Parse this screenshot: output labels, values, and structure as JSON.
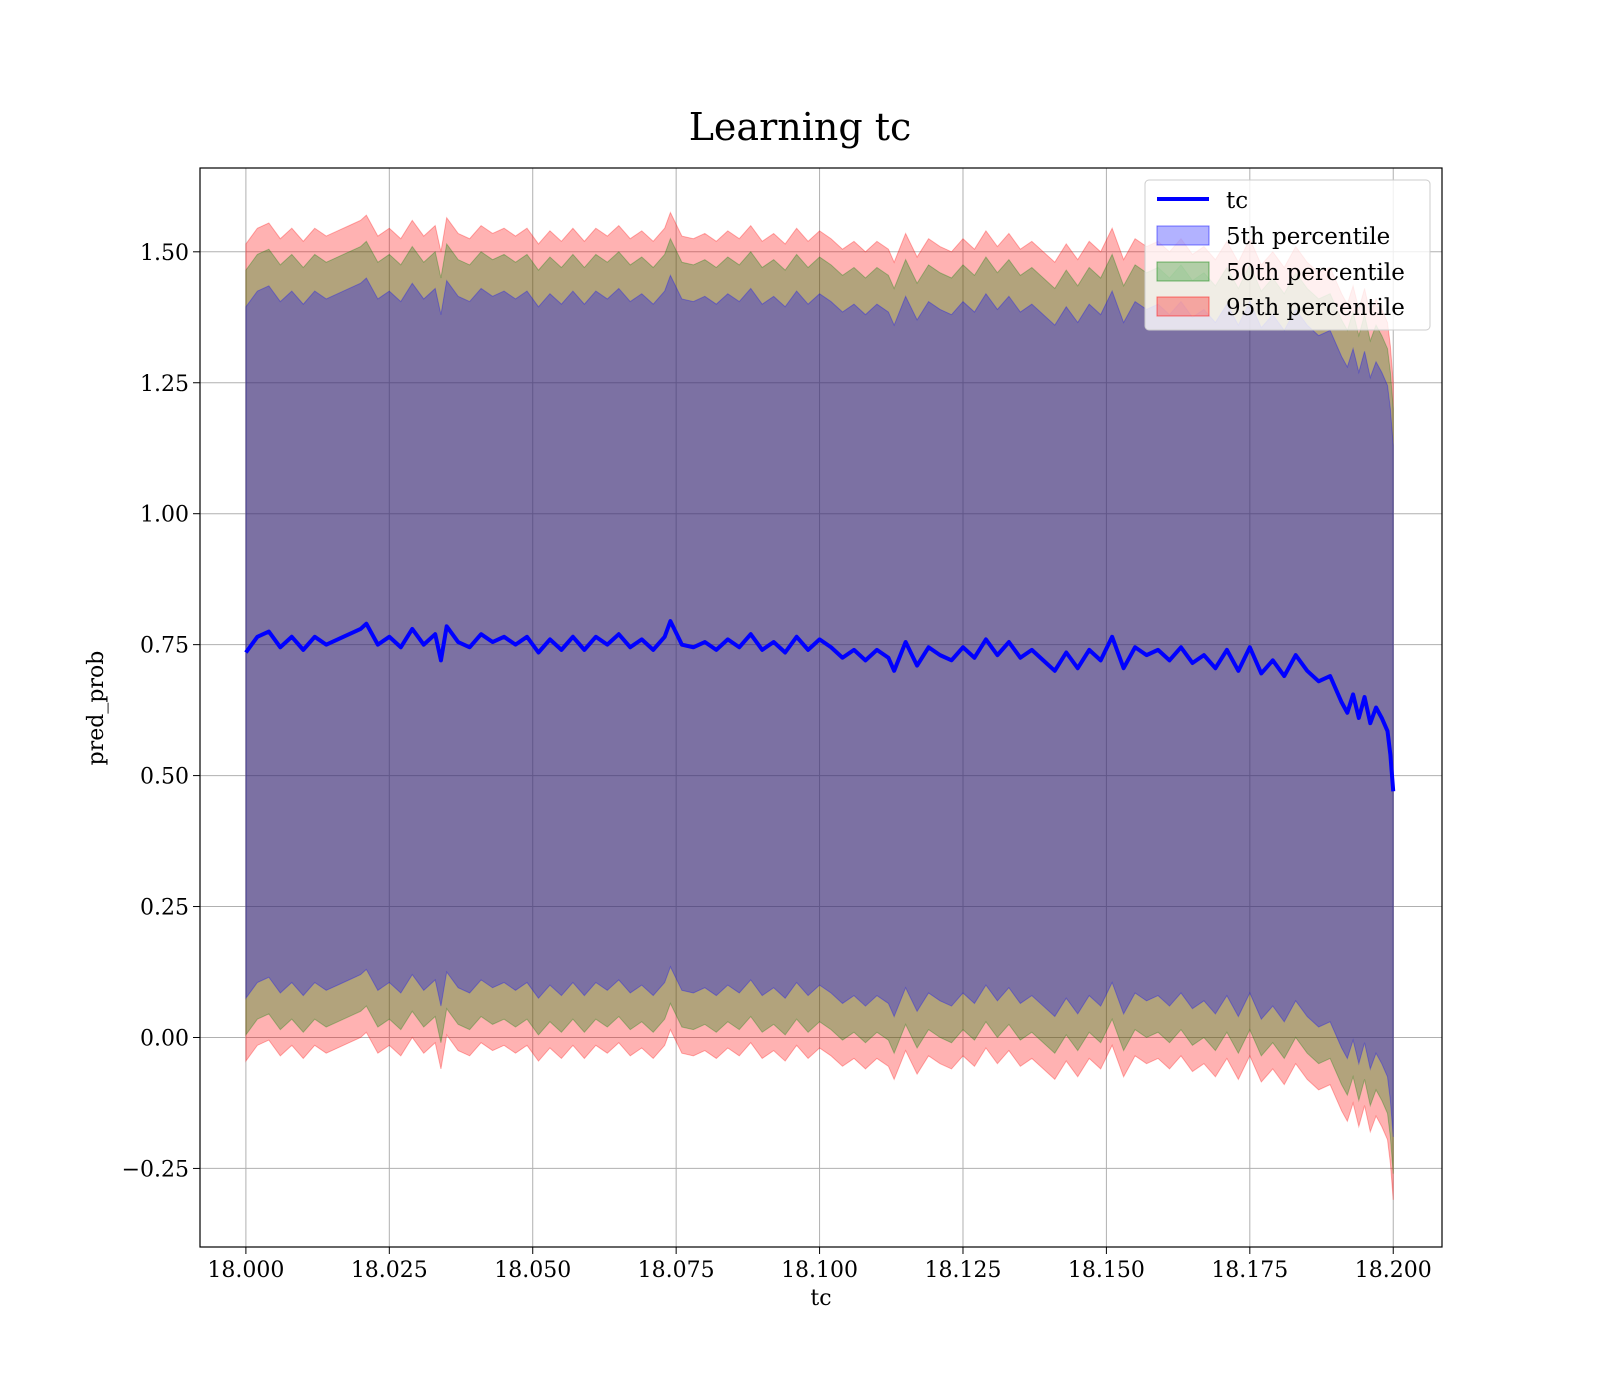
{
  "chart_data": {
    "type": "area",
    "title": "Learning tc",
    "xlabel": "tc",
    "ylabel": "pred_prob",
    "xlim": [
      17.992,
      18.2085
    ],
    "ylim": [
      -0.4,
      1.66
    ],
    "xticks": [
      18.0,
      18.025,
      18.05,
      18.075,
      18.1,
      18.125,
      18.15,
      18.175,
      18.2
    ],
    "xtick_labels": [
      "18.000",
      "18.025",
      "18.050",
      "18.075",
      "18.100",
      "18.125",
      "18.150",
      "18.175",
      "18.200"
    ],
    "yticks": [
      -0.25,
      0.0,
      0.25,
      0.5,
      0.75,
      1.0,
      1.25,
      1.5
    ],
    "ytick_labels": [
      "−0.25",
      "0.00",
      "0.25",
      "0.50",
      "0.75",
      "1.00",
      "1.25",
      "1.50"
    ],
    "grid": true,
    "legend_position": "top-right",
    "series": [
      {
        "name": "tc",
        "kind": "line",
        "color": "#0000ff"
      },
      {
        "name": "5th percentile",
        "kind": "band",
        "color": "#0000ff",
        "half_width": 0.66
      },
      {
        "name": "50th percentile",
        "kind": "band",
        "color": "#008000",
        "half_width": 0.73
      },
      {
        "name": "95th percentile",
        "kind": "band",
        "color": "#ff0000",
        "half_width": 0.78
      }
    ],
    "x": [
      18.0,
      18.002,
      18.004,
      18.006,
      18.008,
      18.01,
      18.012,
      18.014,
      18.016,
      18.018,
      18.02,
      18.021,
      18.023,
      18.025,
      18.027,
      18.029,
      18.031,
      18.033,
      18.034,
      18.035,
      18.037,
      18.039,
      18.041,
      18.043,
      18.045,
      18.047,
      18.049,
      18.051,
      18.053,
      18.055,
      18.057,
      18.059,
      18.061,
      18.063,
      18.065,
      18.067,
      18.069,
      18.071,
      18.073,
      18.074,
      18.076,
      18.078,
      18.08,
      18.082,
      18.084,
      18.086,
      18.088,
      18.09,
      18.092,
      18.094,
      18.096,
      18.098,
      18.1,
      18.102,
      18.104,
      18.106,
      18.108,
      18.11,
      18.112,
      18.113,
      18.115,
      18.117,
      18.119,
      18.121,
      18.123,
      18.125,
      18.127,
      18.129,
      18.131,
      18.133,
      18.135,
      18.137,
      18.139,
      18.141,
      18.143,
      18.145,
      18.147,
      18.149,
      18.151,
      18.153,
      18.155,
      18.157,
      18.159,
      18.161,
      18.163,
      18.165,
      18.167,
      18.169,
      18.171,
      18.173,
      18.175,
      18.177,
      18.179,
      18.181,
      18.183,
      18.185,
      18.187,
      18.189,
      18.191,
      18.192,
      18.193,
      18.194,
      18.195,
      18.196,
      18.197,
      18.198,
      18.199,
      18.1995,
      18.2
    ],
    "y": [
      0.735,
      0.765,
      0.775,
      0.745,
      0.765,
      0.74,
      0.765,
      0.75,
      0.76,
      0.77,
      0.78,
      0.79,
      0.75,
      0.765,
      0.745,
      0.78,
      0.75,
      0.77,
      0.72,
      0.785,
      0.755,
      0.745,
      0.77,
      0.755,
      0.765,
      0.75,
      0.765,
      0.735,
      0.76,
      0.74,
      0.765,
      0.74,
      0.765,
      0.75,
      0.77,
      0.745,
      0.76,
      0.74,
      0.765,
      0.795,
      0.75,
      0.745,
      0.755,
      0.74,
      0.76,
      0.745,
      0.77,
      0.74,
      0.755,
      0.735,
      0.765,
      0.74,
      0.76,
      0.745,
      0.725,
      0.74,
      0.72,
      0.74,
      0.725,
      0.7,
      0.755,
      0.71,
      0.745,
      0.73,
      0.72,
      0.745,
      0.725,
      0.76,
      0.73,
      0.755,
      0.725,
      0.74,
      0.72,
      0.7,
      0.735,
      0.705,
      0.74,
      0.72,
      0.765,
      0.705,
      0.745,
      0.73,
      0.74,
      0.72,
      0.745,
      0.715,
      0.73,
      0.705,
      0.74,
      0.7,
      0.745,
      0.695,
      0.72,
      0.69,
      0.73,
      0.7,
      0.68,
      0.69,
      0.64,
      0.62,
      0.655,
      0.61,
      0.65,
      0.6,
      0.63,
      0.61,
      0.585,
      0.54,
      0.47
    ]
  }
}
